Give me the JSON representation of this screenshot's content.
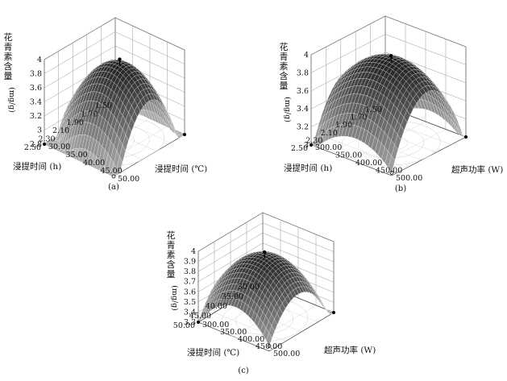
{
  "chart_data": [
    {
      "type": "surface",
      "panel_label": "(a)",
      "zlabel": "花青素含量",
      "zunit": "(mg/g)",
      "xlabel": "浸提时间 (h)",
      "ylabel": "浸提时间 (℃)",
      "x_ticks": [
        "1.50",
        "1.70",
        "1.90",
        "2.10",
        "2.30",
        "2.50"
      ],
      "y_ticks": [
        "30.00",
        "35.00",
        "40.00",
        "45.00",
        "50.00"
      ],
      "z_ticks": [
        "2.8",
        "3",
        "3.2",
        "3.4",
        "3.6",
        "3.8",
        "4"
      ],
      "xlim": [
        1.5,
        2.5
      ],
      "ylim": [
        30,
        50
      ],
      "zlim": [
        2.8,
        4
      ],
      "surface": {
        "x0": 2.0,
        "y0": 41.5,
        "peak": 3.92,
        "ax": 4.6,
        "ay": 0.0048,
        "axy": 0
      },
      "design_points_z": [
        3.92,
        3.97,
        3.94
      ],
      "grid": true
    },
    {
      "type": "surface",
      "panel_label": "(b)",
      "zlabel": "花青素含量",
      "zunit": "(mg/g)",
      "xlabel": "浸提时间 (h)",
      "ylabel": "超声功率 (W)",
      "x_ticks": [
        "1.50",
        "1.70",
        "1.90",
        "2.10",
        "2.30",
        "2.50"
      ],
      "y_ticks": [
        "300.00",
        "350.00",
        "400.00",
        "450.00",
        "500.00"
      ],
      "z_ticks": [
        "3",
        "3.2",
        "3.4",
        "3.6",
        "3.8",
        "4"
      ],
      "xlim": [
        1.5,
        2.5
      ],
      "ylim": [
        300,
        500
      ],
      "zlim": [
        3,
        4
      ],
      "surface": {
        "x0": 2.02,
        "y0": 410,
        "peak": 3.95,
        "ax": 3.0,
        "ay": 2.8e-05,
        "axy": 0
      },
      "design_points_z": [
        3.95,
        3.97,
        3.92
      ],
      "grid": true
    },
    {
      "type": "surface",
      "panel_label": "(c)",
      "zlabel": "花青素含量",
      "zunit": "(mg/g)",
      "xlabel": "浸提时间 (℃)",
      "ylabel": "超声功率 (W)",
      "x_ticks": [
        "30.00",
        "35.00",
        "40.00",
        "45.00",
        "50.00"
      ],
      "y_ticks": [
        "300.00",
        "350.00",
        "400.00",
        "450.00",
        "500.00"
      ],
      "z_ticks": [
        "3.3",
        "3.4",
        "3.5",
        "3.6",
        "3.7",
        "3.8",
        "3.9",
        "4"
      ],
      "xlim": [
        30,
        50
      ],
      "ylim": [
        300,
        500
      ],
      "zlim": [
        3.3,
        4
      ],
      "surface": {
        "x0": 41,
        "y0": 405,
        "peak": 3.94,
        "ax": 0.0042,
        "ay": 2.75e-05,
        "axy": 0
      },
      "design_points_z": [
        3.94,
        3.97,
        3.93
      ],
      "grid": true
    }
  ]
}
